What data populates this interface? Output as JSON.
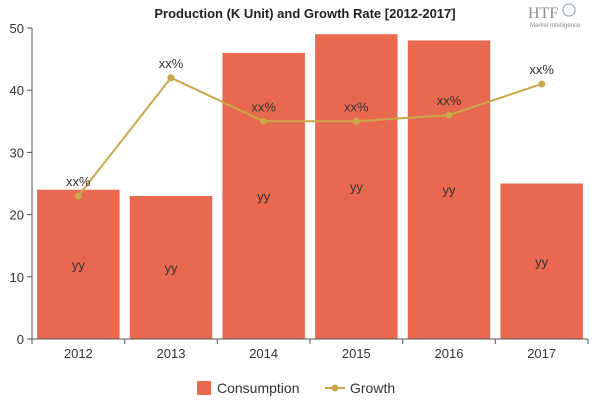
{
  "chart_data": {
    "type": "bar",
    "title": "Production (K Unit) and Growth Rate [2012-2017]",
    "categories": [
      "2012",
      "2013",
      "2014",
      "2015",
      "2016",
      "2017"
    ],
    "ylim": [
      0,
      50
    ],
    "yticks": [
      0,
      10,
      20,
      30,
      40,
      50
    ],
    "xlabel": "",
    "ylabel": "",
    "grid": false,
    "legend_position": "bottom",
    "series": [
      {
        "name": "Consumption",
        "type": "bar",
        "color": "#e8694f",
        "values": [
          24,
          23,
          46,
          49,
          48,
          25
        ],
        "labels": [
          "yy",
          "yy",
          "yy",
          "yy",
          "yy",
          "yy"
        ]
      },
      {
        "name": "Growth",
        "type": "line",
        "color": "#c9a84a",
        "values": [
          23,
          42,
          35,
          35,
          36,
          41
        ],
        "labels": [
          "xx%",
          "xx%",
          "xx%",
          "xx%",
          "xx%",
          "xx%"
        ]
      }
    ]
  },
  "logo": {
    "main": "HTF",
    "sub": "Market Intelligence"
  }
}
